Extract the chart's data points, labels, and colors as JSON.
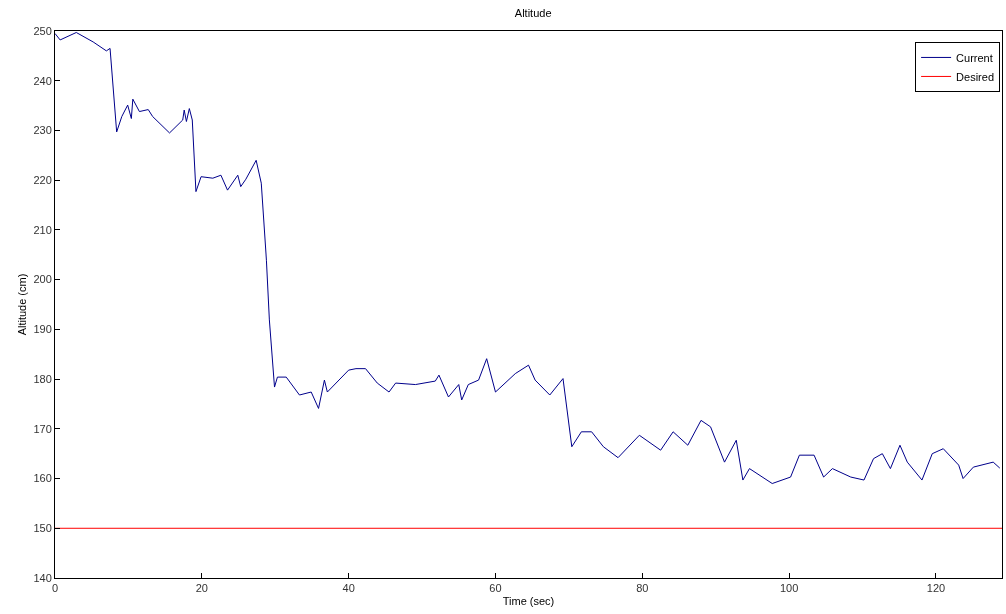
{
  "chart_data": {
    "type": "line",
    "title": "Altitude",
    "xlabel": "Time (sec)",
    "ylabel": "Altitude (cm)",
    "xlim": [
      0,
      129
    ],
    "xticks": [
      0,
      20,
      40,
      60,
      80,
      100,
      120
    ],
    "ylim": [
      140,
      250
    ],
    "yticks": [
      140,
      150,
      160,
      170,
      180,
      190,
      200,
      210,
      220,
      230,
      240,
      250
    ],
    "grid": false,
    "legend": "top right",
    "marker": "none",
    "line_style": "solid",
    "series": [
      {
        "name": "Current",
        "color": "#00008b",
        "x": [
          0,
          0.7,
          2.9,
          5.2,
          7.0,
          7.5,
          8.4,
          9.1,
          9.9,
          10.4,
          10.6,
          11.5,
          12.7,
          13.3,
          15.6,
          17.4,
          17.6,
          17.9,
          18.3,
          18.7,
          19.2,
          19.9,
          21.5,
          22.6,
          23.5,
          24.9,
          25.3,
          26,
          27.4,
          28.1,
          28.8,
          29.2,
          29.9,
          30.3,
          31.5,
          33.3,
          34.9,
          35.9,
          36.7,
          37.1,
          40,
          41,
          42.3,
          43.9,
          45.5,
          46.4,
          49.1,
          51.8,
          52.3,
          53.6,
          55,
          55.4,
          56.3,
          57.7,
          58.8,
          60,
          62.7,
          64.5,
          65.4,
          67.4,
          69.2,
          70.4,
          71.7,
          73.1,
          74.7,
          76.7,
          79.6,
          82.5,
          84.2,
          86.2,
          88,
          89.3,
          91.2,
          92.8,
          93.7,
          94.6,
          97.7,
          100.2,
          101.4,
          103.4,
          104.7,
          105.9,
          108.4,
          110.2,
          111.5,
          112.7,
          113.8,
          115.1,
          116.1,
          118.1,
          119.5,
          121,
          123.1,
          123.7,
          125.1,
          127.8,
          128.7
        ],
        "values": [
          249.5,
          248.2,
          249.7,
          247.8,
          246,
          246.5,
          229.7,
          232.8,
          235.1,
          232.4,
          236.3,
          233.8,
          234.2,
          232.8,
          229.5,
          232.1,
          234.1,
          231.8,
          234.4,
          232.1,
          217.7,
          220.7,
          220.4,
          221,
          218,
          221,
          218.7,
          220.2,
          224,
          219.4,
          203.9,
          191.9,
          178.4,
          180.4,
          180.4,
          176.8,
          177.4,
          174.1,
          179.8,
          177.4,
          181.8,
          182.1,
          182.1,
          179.2,
          177.4,
          179.2,
          178.9,
          179.6,
          180.8,
          176.4,
          178.9,
          175.8,
          178.9,
          179.8,
          184.1,
          177.4,
          181.1,
          182.8,
          179.8,
          176.8,
          180.1,
          166.4,
          169.4,
          169.4,
          166.4,
          164.2,
          168.7,
          165.7,
          169.4,
          166.7,
          171.7,
          170.4,
          163.3,
          167.7,
          159.7,
          162,
          159,
          160.3,
          164.7,
          164.7,
          160.3,
          162,
          160.3,
          159.7,
          164,
          165,
          162,
          166.7,
          163.3,
          159.7,
          165,
          166,
          162.7,
          160,
          162.3,
          163.3,
          162.1
        ]
      },
      {
        "name": "Desired",
        "color": "#ff0000",
        "x": [
          0,
          129
        ],
        "values": [
          150,
          150
        ]
      }
    ]
  }
}
